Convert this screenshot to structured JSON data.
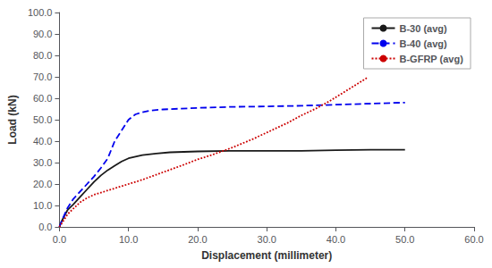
{
  "chart_data": {
    "type": "line",
    "xlabel": "Displacement (millimeter)",
    "ylabel": "Load (kN)",
    "xlim": [
      0,
      60.0
    ],
    "ylim": [
      0,
      100.0
    ],
    "xticks": [
      {
        "value": 0,
        "label": "0.0"
      },
      {
        "value": 10,
        "label": "10.0"
      },
      {
        "value": 20,
        "label": "20.0"
      },
      {
        "value": 30,
        "label": "30.0"
      },
      {
        "value": 40,
        "label": "40.0"
      },
      {
        "value": 50,
        "label": "50.0"
      },
      {
        "value": 60,
        "label": "60.0"
      }
    ],
    "yticks": [
      {
        "value": 0,
        "label": "0.0"
      },
      {
        "value": 10,
        "label": "10.0"
      },
      {
        "value": 20,
        "label": "20.0"
      },
      {
        "value": 30,
        "label": "30.0"
      },
      {
        "value": 40,
        "label": "40.0"
      },
      {
        "value": 50,
        "label": "50.0"
      },
      {
        "value": 60,
        "label": "60.0"
      },
      {
        "value": 70,
        "label": "70.0"
      },
      {
        "value": 80,
        "label": "80.0"
      },
      {
        "value": 90,
        "label": "90.0"
      },
      {
        "value": 100,
        "label": "100.0"
      }
    ],
    "grid": false,
    "legend": "upper right",
    "series": [
      {
        "name": "B-30 (avg)",
        "color": "#1a1a1a",
        "line_style": "solid",
        "x": [
          0,
          0.3,
          0.7,
          1.2,
          2.0,
          3.0,
          4.0,
          5.0,
          6.0,
          7.0,
          8.0,
          9.0,
          10.0,
          12.0,
          14.0,
          16.0,
          18.0,
          20.0,
          25.0,
          30.0,
          35.0,
          40.0,
          45.0,
          50.0
        ],
        "values": [
          0,
          2.5,
          5.0,
          8.0,
          10.5,
          14.0,
          17.5,
          21.0,
          24.0,
          26.5,
          28.5,
          30.5,
          32.0,
          33.5,
          34.2,
          34.8,
          35.0,
          35.2,
          35.5,
          35.5,
          35.5,
          35.8,
          36.0,
          36.0
        ]
      },
      {
        "name": "B-40 (avg)",
        "color": "#0000ee",
        "line_style": "dashed",
        "x": [
          0,
          0.3,
          0.7,
          1.2,
          2.0,
          3.0,
          4.0,
          5.0,
          6.0,
          7.0,
          7.5,
          8.0,
          9.0,
          10.0,
          11.0,
          12.0,
          13.0,
          15.0,
          20.0,
          25.0,
          30.0,
          35.0,
          40.0,
          45.0,
          50.0
        ],
        "values": [
          0,
          2.5,
          5.5,
          9.0,
          13.0,
          16.5,
          20.0,
          23.5,
          27.5,
          32.0,
          36.0,
          40.0,
          45.0,
          50.0,
          52.5,
          53.5,
          54.2,
          54.8,
          55.5,
          56.0,
          56.2,
          56.5,
          57.0,
          57.5,
          58.0
        ]
      },
      {
        "name": "B-GFRP (avg)",
        "color": "#cc0000",
        "line_style": "dotted",
        "x": [
          0,
          0.3,
          0.7,
          1.2,
          2.0,
          3.0,
          4.0,
          5.0,
          6.0,
          7.0,
          8.0,
          10.0,
          12.0,
          15.0,
          18.0,
          20.0,
          22.0,
          25.0,
          28.0,
          30.0,
          33.0,
          35.0,
          37.0,
          39.0,
          41.0,
          43.0,
          44.5
        ],
        "values": [
          0,
          1.5,
          3.5,
          6.0,
          8.5,
          11.5,
          13.5,
          15.0,
          16.0,
          17.0,
          18.0,
          20.0,
          22.0,
          25.5,
          29.0,
          31.5,
          33.5,
          37.0,
          41.0,
          44.0,
          48.5,
          52.0,
          55.0,
          58.5,
          62.5,
          66.5,
          69.5
        ]
      }
    ]
  }
}
